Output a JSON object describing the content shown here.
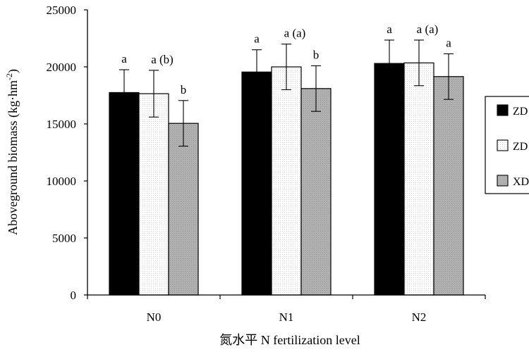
{
  "chart_data": {
    "type": "bar",
    "title": "",
    "xlabel": "氮水平  N fertilization level",
    "ylabel": "Aboveground biomass (kg·hm",
    "ylabel_exponent": "-2",
    "ylabel_close": ")",
    "ylim": [
      0,
      25000
    ],
    "yticks": [
      0,
      5000,
      10000,
      15000,
      20000,
      25000
    ],
    "ytick_labels": [
      "0",
      "5000",
      "10000",
      "15000",
      "20000",
      "25000"
    ],
    "categories": [
      "N0",
      "N1",
      "N2"
    ],
    "series": [
      {
        "name": "ZD",
        "values": [
          17750,
          19550,
          20300
        ],
        "errors": [
          2000,
          1950,
          2050
        ],
        "significance": [
          "a",
          "a",
          "a"
        ],
        "color": "#000000"
      },
      {
        "name": "ZD",
        "values": [
          17650,
          20000,
          20350
        ],
        "errors": [
          2050,
          2000,
          2000
        ],
        "significance": [
          "a (b)",
          "a (a)",
          "a (a)"
        ],
        "color": "#ffffff"
      },
      {
        "name": "XD",
        "values": [
          15050,
          18100,
          19150
        ],
        "errors": [
          2000,
          2000,
          2000
        ],
        "significance": [
          "b",
          "b",
          "a"
        ],
        "color": "#b4b4b4"
      }
    ],
    "legend": {
      "position": "right",
      "labels": [
        "ZD",
        "ZD",
        "XD"
      ]
    }
  }
}
